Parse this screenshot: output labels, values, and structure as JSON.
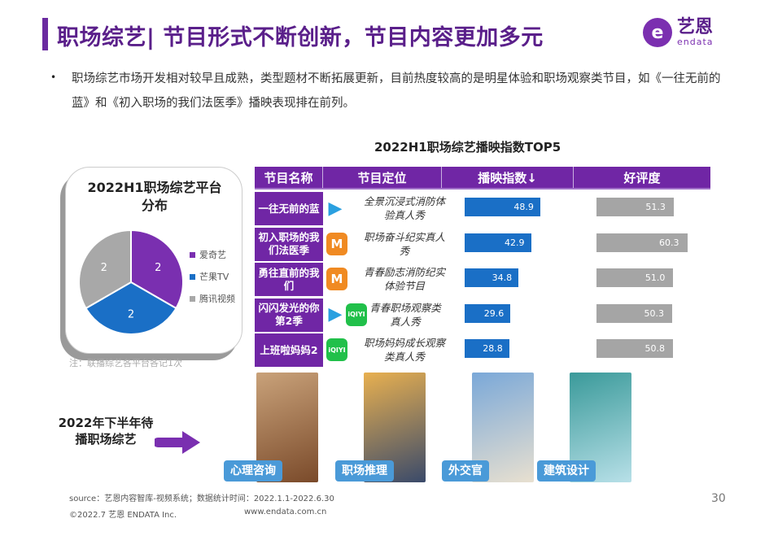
{
  "header": {
    "title": "职场综艺| 节目形式不断创新，节目内容更加多元",
    "logo_cn": "艺恩",
    "logo_en": "endata"
  },
  "intro": {
    "bullet": "•",
    "text": "职场综艺市场开发相对较早且成熟，类型题材不断拓展更新，目前热度较高的是明星体验和职场观察类节目，如《一往无前的蓝》和《初入职场的我们法医季》播映表现排在前列。"
  },
  "pie_chart": {
    "title": "2022H1职场综艺平台分布",
    "note": "注：联播综艺各平台各记1次",
    "chart_data": {
      "type": "pie",
      "categories": [
        "爱奇艺",
        "芒果TV",
        "腾讯视频"
      ],
      "values": [
        2,
        2,
        2
      ],
      "colors": [
        "#7a2fb0",
        "#1a6fc6",
        "#a8a8a8"
      ],
      "legend": "right"
    }
  },
  "table": {
    "title": "2022H1职场综艺播映指数TOP5",
    "headers": [
      "节目名称",
      "节目定位",
      "播映指数↓",
      "好评度"
    ],
    "rows": [
      {
        "name": "一往无前的蓝",
        "platforms": [
          "tencent"
        ],
        "position": "全景沉浸式消防体验真人秀",
        "index": "48.9",
        "rating": "51.3"
      },
      {
        "name": "初入职场的我们法医季",
        "platforms": [
          "mango"
        ],
        "position": "职场奋斗纪实真人秀",
        "index": "42.9",
        "rating": "60.3"
      },
      {
        "name": "勇往直前的我们",
        "platforms": [
          "mango"
        ],
        "position": "青春励志消防纪实体验节目",
        "index": "34.8",
        "rating": "51.0"
      },
      {
        "name": "闪闪发光的你第2季",
        "platforms": [
          "tencent",
          "iqiyi"
        ],
        "position": "青春职场观察类真人秀",
        "index": "29.6",
        "rating": "50.3"
      },
      {
        "name": "上班啦妈妈2",
        "platforms": [
          "iqiyi"
        ],
        "position": "职场妈妈成长观察类真人秀",
        "index": "28.8",
        "rating": "50.8"
      }
    ],
    "platform_labels": {
      "iqiyi": "iQIYI",
      "mango": "M",
      "tencent": "▶"
    },
    "colors": {
      "header": "#7026a5",
      "index_bar": "#1a6fc6",
      "rating_bar": "#a5a5a5"
    }
  },
  "upcoming": {
    "label": "2022年下半年待播职场综艺",
    "genres": [
      "心理咨询",
      "职场推理",
      "外交官",
      "建筑设计"
    ]
  },
  "footer": {
    "source": "source：艺恩内容智库-视频系统；数据统计时间：2022.1.1-2022.6.30",
    "copyright": "©2022.7 艺恩 ENDATA Inc.",
    "website": "www.endata.com.cn",
    "page": "30"
  }
}
